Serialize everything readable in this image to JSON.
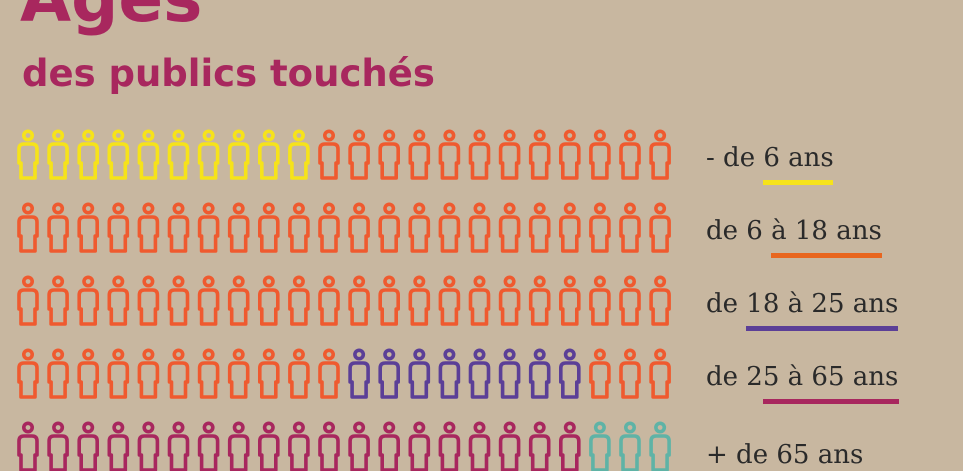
{
  "title": "Âges",
  "subtitle": "des publics touchés",
  "icon": "person-outline-icon",
  "colors": {
    "background": "#c8b7a0",
    "title": "#a8275e",
    "under6": "#f6e31a",
    "6to18": "#ef5a2f",
    "18to25": "#5b3f97",
    "25to65": "#a8275e",
    "over65": "#5fb3a6"
  },
  "rows": [
    {
      "label": "- de 6 ans",
      "label_plain": "- de ",
      "label_underlined": "6 ans",
      "underline_color": "#f6e31a",
      "segments": [
        {
          "color": "#f6e31a",
          "count": 10
        },
        {
          "color": "#ef5a2f",
          "count": 12
        }
      ]
    },
    {
      "label": "de 6 à 18 ans",
      "label_plain": "de 6 ",
      "label_underlined": "à 18 ans",
      "underline_color": "#e8661f",
      "segments": [
        {
          "color": "#ef5a2f",
          "count": 22
        }
      ]
    },
    {
      "label": "de 18 à 25 ans",
      "label_plain": "de ",
      "label_underlined": "18 à 25 ans",
      "underline_color": "#5b3f97",
      "segments": [
        {
          "color": "#ef5a2f",
          "count": 22
        }
      ]
    },
    {
      "label": "de 25 à 65 ans",
      "label_plain": "de 2",
      "label_underlined": "5 à 65 ans",
      "underline_color": "#a8275e",
      "segments": [
        {
          "color": "#ef5a2f",
          "count": 11
        },
        {
          "color": "#5b3f97",
          "count": 8
        },
        {
          "color": "#ef5a2f",
          "count": 3
        }
      ]
    },
    {
      "label": "+ de 65 ans",
      "label_plain": "+ de 65 ans",
      "label_underlined": "",
      "underline_color": "#5fb3a6",
      "segments": [
        {
          "color": "#a8275e",
          "count": 19
        },
        {
          "color": "#5fb3a6",
          "count": 3
        }
      ]
    }
  ]
}
